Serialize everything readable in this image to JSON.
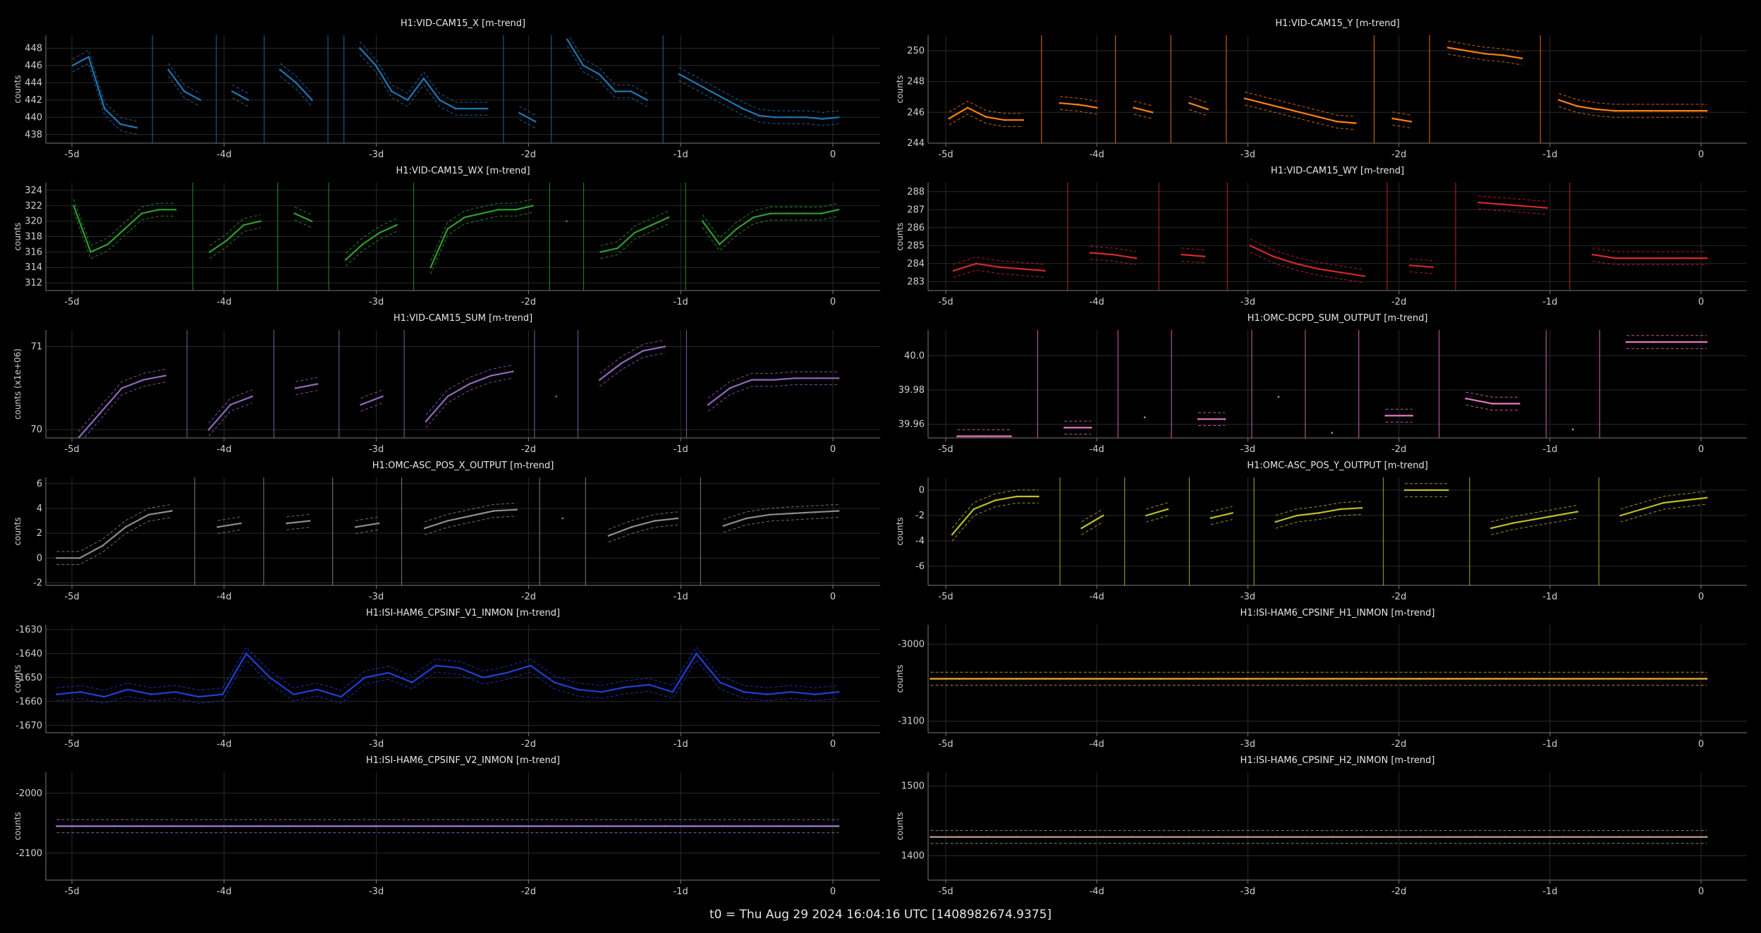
{
  "footer": "t0 = Thu Aug 29 2024 16:04:16 UTC [1408982674.9375]",
  "chart_data": [
    {
      "type": "line",
      "title": "H1:VID-CAM15_X [m-trend]",
      "ylabel": "counts",
      "color": "#1f77b4",
      "x_ticks": [
        "-5d",
        "-4d",
        "-3d",
        "-2d",
        "-1d",
        "0"
      ],
      "y_ticks": [
        "438",
        "440",
        "442",
        "444",
        "446",
        "448"
      ],
      "ylim": [
        437,
        449.5
      ],
      "series": [
        {
          "values": [
            null,
            446,
            447,
            441,
            439.2,
            438.8,
            null,
            445.5,
            443,
            442,
            null,
            443,
            442,
            null,
            445.5,
            444,
            442,
            null,
            null,
            448,
            446,
            443,
            442,
            444.5,
            442,
            441,
            441,
            441,
            null,
            440.5,
            439.5,
            null,
            449,
            446,
            445,
            443,
            443,
            442,
            null,
            445,
            444,
            443,
            442,
            441,
            440.2,
            440,
            440,
            440,
            439.8,
            440
          ]
        }
      ]
    },
    {
      "type": "line",
      "title": "H1:VID-CAM15_Y [m-trend]",
      "ylabel": "counts",
      "color": "#ff7f0e",
      "x_ticks": [
        "-5d",
        "-4d",
        "-3d",
        "-2d",
        "-1d",
        "0"
      ],
      "y_ticks": [
        "244",
        "246",
        "248",
        "250"
      ],
      "ylim": [
        244,
        251
      ],
      "series": [
        {
          "values": [
            null,
            245.6,
            246.3,
            245.7,
            245.5,
            245.5,
            null,
            246.6,
            246.5,
            246.3,
            null,
            246.3,
            246,
            null,
            246.6,
            246.2,
            null,
            246.9,
            246.6,
            246.3,
            246,
            245.7,
            245.4,
            245.3,
            null,
            245.6,
            245.4,
            null,
            250.2,
            250,
            249.8,
            249.7,
            249.5,
            null,
            246.8,
            246.4,
            246.2,
            246.1,
            246.1,
            246.1,
            246.1,
            246.1,
            246.1
          ]
        }
      ]
    },
    {
      "type": "line",
      "title": "H1:VID-CAM15_WX [m-trend]",
      "ylabel": "counts",
      "color": "#2ca02c",
      "x_ticks": [
        "-5d",
        "-4d",
        "-3d",
        "-2d",
        "-1d",
        "0"
      ],
      "y_ticks": [
        "312",
        "314",
        "316",
        "318",
        "320",
        "322",
        "324"
      ],
      "ylim": [
        311,
        325
      ],
      "series": [
        {
          "values": [
            null,
            322,
            316,
            317,
            319,
            321,
            321.5,
            321.5,
            null,
            316,
            317.5,
            319.5,
            320,
            null,
            321,
            320,
            null,
            315,
            317,
            318.5,
            319.5,
            null,
            314,
            319,
            320.5,
            321,
            321.5,
            321.5,
            322,
            null,
            320,
            null,
            316,
            316.5,
            318.5,
            319.5,
            320.5,
            null,
            320,
            317,
            319,
            320.5,
            321,
            321,
            321,
            321,
            321.5
          ]
        }
      ]
    },
    {
      "type": "line",
      "title": "H1:VID-CAM15_WY [m-trend]",
      "ylabel": "counts",
      "color": "#d62728",
      "x_ticks": [
        "-5d",
        "-4d",
        "-3d",
        "-2d",
        "-1d",
        "0"
      ],
      "y_ticks": [
        "283",
        "284",
        "285",
        "286",
        "287",
        "288"
      ],
      "ylim": [
        282.5,
        288.5
      ],
      "series": [
        {
          "values": [
            null,
            283.6,
            284,
            283.8,
            283.7,
            283.6,
            null,
            284.6,
            284.5,
            284.3,
            null,
            284.5,
            284.4,
            null,
            285,
            284.4,
            284,
            283.7,
            283.5,
            283.3,
            null,
            283.9,
            283.8,
            null,
            287.4,
            287.3,
            287.2,
            287.1,
            null,
            284.5,
            284.3,
            284.3,
            284.3,
            284.3,
            284.3
          ]
        }
      ]
    },
    {
      "type": "line",
      "title": "H1:VID-CAM15_SUM [m-trend]",
      "ylabel": "counts (x1e+06)",
      "color": "#9467bd",
      "x_ticks": [
        "-5d",
        "-4d",
        "-3d",
        "-2d",
        "-1d",
        "0"
      ],
      "y_ticks": [
        "70",
        "71"
      ],
      "ylim": [
        69.9,
        71.2
      ],
      "series": [
        {
          "values": [
            null,
            69.9,
            70.2,
            70.5,
            70.6,
            70.65,
            null,
            70,
            70.3,
            70.4,
            null,
            70.5,
            70.55,
            null,
            70.3,
            70.4,
            null,
            70.1,
            70.4,
            70.55,
            70.65,
            70.7,
            null,
            70.4,
            null,
            70.6,
            70.8,
            70.95,
            71,
            null,
            70.3,
            70.5,
            70.6,
            70.6,
            70.62,
            70.62,
            70.62
          ]
        }
      ]
    },
    {
      "type": "line",
      "title": "H1:OMC-DCPD_SUM_OUTPUT [m-trend]",
      "ylabel": "",
      "color": "#e377c2",
      "x_ticks": [
        "-5d",
        "-4d",
        "-3d",
        "-2d",
        "-1d",
        "0"
      ],
      "y_ticks": [
        "39.96",
        "39.98",
        "40.0"
      ],
      "ylim": [
        39.952,
        40.015
      ],
      "series": [
        {
          "values": [
            null,
            39.953,
            39.953,
            39.953,
            null,
            39.958,
            39.958,
            null,
            39.964,
            null,
            39.963,
            39.963,
            null,
            39.976,
            null,
            39.955,
            null,
            39.965,
            39.965,
            null,
            39.975,
            39.972,
            39.972,
            null,
            39.957,
            null,
            40.008,
            40.008,
            40.008,
            40.008
          ]
        }
      ]
    },
    {
      "type": "line",
      "title": "H1:OMC-ASC_POS_X_OUTPUT [m-trend]",
      "ylabel": "counts",
      "color": "#8c8c8c",
      "x_ticks": [
        "-5d",
        "-4d",
        "-3d",
        "-2d",
        "-1d",
        "0"
      ],
      "y_ticks": [
        "-2",
        "0",
        "2",
        "4",
        "6"
      ],
      "ylim": [
        -2.2,
        6.5
      ],
      "series": [
        {
          "values": [
            0,
            0,
            1,
            2.5,
            3.5,
            3.8,
            null,
            2.5,
            2.8,
            null,
            2.8,
            3,
            null,
            2.5,
            2.8,
            null,
            2.4,
            3,
            3.4,
            3.8,
            3.9,
            null,
            3.2,
            null,
            1.8,
            2.5,
            3,
            3.2,
            null,
            2.6,
            3.2,
            3.5,
            3.6,
            3.7,
            3.8
          ]
        }
      ]
    },
    {
      "type": "line",
      "title": "H1:OMC-ASC_POS_Y_OUTPUT [m-trend]",
      "ylabel": "counts",
      "color": "#bcbd22",
      "x_ticks": [
        "-5d",
        "-4d",
        "-3d",
        "-2d",
        "-1d",
        "0"
      ],
      "y_ticks": [
        "-6",
        "-4",
        "-2",
        "0"
      ],
      "ylim": [
        -7.5,
        1
      ],
      "series": [
        {
          "values": [
            null,
            -3.5,
            -1.5,
            -0.8,
            -0.5,
            -0.5,
            null,
            -3,
            -2,
            null,
            -2,
            -1.5,
            null,
            -2.2,
            -1.8,
            null,
            -2.5,
            -2,
            -1.8,
            -1.5,
            -1.4,
            null,
            0,
            0,
            0,
            null,
            -3,
            -2.6,
            -2.3,
            -2,
            -1.7,
            null,
            -2,
            -1.5,
            -1,
            -0.8,
            -0.6
          ]
        }
      ]
    },
    {
      "type": "line",
      "title": "H1:ISI-HAM6_CPSINF_V1_INMON [m-trend]",
      "ylabel": "counts",
      "color": "#1f3fd8",
      "x_ticks": [
        "-5d",
        "-4d",
        "-3d",
        "-2d",
        "-1d",
        "0"
      ],
      "y_ticks": [
        "-1670",
        "-1660",
        "-1650",
        "-1640",
        "-1630"
      ],
      "ylim": [
        -1673,
        -1628
      ],
      "series": [
        {
          "values": [
            -1657,
            -1656,
            -1658,
            -1655,
            -1657,
            -1656,
            -1658,
            -1657,
            -1640,
            -1650,
            -1657,
            -1655,
            -1658,
            -1650,
            -1648,
            -1652,
            -1645,
            -1646,
            -1650,
            -1648,
            -1645,
            -1652,
            -1655,
            -1656,
            -1654,
            -1653,
            -1656,
            -1640,
            -1652,
            -1656,
            -1657,
            -1656,
            -1657,
            -1656
          ]
        }
      ]
    },
    {
      "type": "line",
      "title": "H1:ISI-HAM6_CPSINF_H1_INMON [m-trend]",
      "ylabel": "counts",
      "color": "#f0b030",
      "x_ticks": [
        "-5d",
        "-4d",
        "-3d",
        "-2d",
        "-1d",
        "0"
      ],
      "y_ticks": [
        "-3100",
        "-3000"
      ],
      "ylim": [
        -3115,
        -2975
      ],
      "series": [
        {
          "values": [
            -3045,
            -3045,
            -3045,
            -3045,
            -3045,
            -3045,
            -3045,
            -3045,
            -3045,
            -3045,
            -3045,
            -3045,
            -3045,
            -3045,
            -3045,
            -3045,
            -3045,
            -3045,
            -3045,
            -3045,
            -3045,
            -3045,
            -3045,
            -3045,
            -3045,
            -3045,
            -3045,
            -3045
          ]
        }
      ]
    },
    {
      "type": "line",
      "title": "H1:ISI-HAM6_CPSINF_V2_INMON [m-trend]",
      "ylabel": "counts",
      "color": "#a57ad8",
      "x_ticks": [
        "-5d",
        "-4d",
        "-3d",
        "-2d",
        "-1d",
        "0"
      ],
      "y_ticks": [
        "-2100",
        "-2000"
      ],
      "ylim": [
        -2145,
        -1965
      ],
      "series": [
        {
          "values": [
            -2055,
            -2055,
            -2055,
            -2055,
            -2055,
            -2055,
            -2055,
            -2055,
            -2055,
            -2055,
            -2055,
            -2055,
            -2055,
            -2055,
            -2055,
            -2055,
            -2055,
            -2055,
            -2055,
            -2055,
            -2055,
            -2055,
            -2055,
            -2055,
            -2055,
            -2055,
            -2055,
            -2055
          ]
        }
      ]
    },
    {
      "type": "line",
      "title": "H1:ISI-HAM6_CPSINF_H2_INMON [m-trend]",
      "ylabel": "counts",
      "color": "#c4a08a",
      "x_ticks": [
        "-5d",
        "-4d",
        "-3d",
        "-2d",
        "-1d",
        "0"
      ],
      "y_ticks": [
        "1400",
        "1500"
      ],
      "ylim": [
        1365,
        1520
      ],
      "series": [
        {
          "values": [
            1427,
            1427,
            1427,
            1427,
            1427,
            1427,
            1427,
            1427,
            1427,
            1427,
            1427,
            1427,
            1427,
            1427,
            1427,
            1427,
            1427,
            1427,
            1427,
            1427,
            1427,
            1427,
            1427,
            1427,
            1427,
            1427,
            1427,
            1427
          ]
        }
      ]
    }
  ]
}
